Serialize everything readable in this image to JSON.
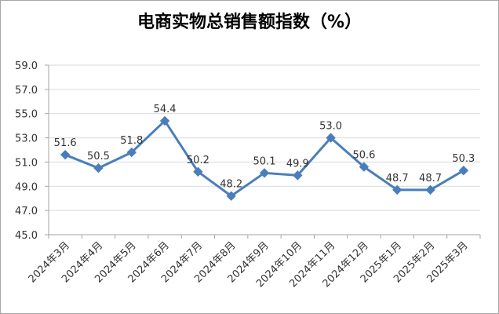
{
  "chart_data": {
    "type": "line",
    "title": "电商实物总销售额指数（%）",
    "xlabel": "",
    "ylabel": "",
    "categories": [
      "2024年3月",
      "2024年4月",
      "2024年5月",
      "2024年6月",
      "2024年7月",
      "2024年8月",
      "2024年9月",
      "2024年10月",
      "2024年11月",
      "2024年12月",
      "2025年1月",
      "2025年2月",
      "2025年3月"
    ],
    "series": [
      {
        "values": [
          51.6,
          50.5,
          51.8,
          54.4,
          50.2,
          48.2,
          50.1,
          49.9,
          53.0,
          50.6,
          48.7,
          48.7,
          50.3
        ]
      }
    ],
    "data_labels": [
      "51.6",
      "50.5",
      "51.8",
      "54.4",
      "50.2",
      "48.2",
      "50.1",
      "49.9",
      "53.0",
      "50.6",
      "48.7",
      "48.7",
      "50.3"
    ],
    "ylim": [
      45.0,
      59.0
    ],
    "yticks": [
      45.0,
      47.0,
      49.0,
      51.0,
      53.0,
      55.0,
      57.0,
      59.0
    ],
    "ytick_labels": [
      "45.0",
      "47.0",
      "49.0",
      "51.0",
      "53.0",
      "55.0",
      "57.0",
      "59.0"
    ],
    "grid": true,
    "legend": "none",
    "colors": {
      "line": "#4a7ebb",
      "grid": "#d9d9d9",
      "axis": "#a6a6a6"
    }
  }
}
